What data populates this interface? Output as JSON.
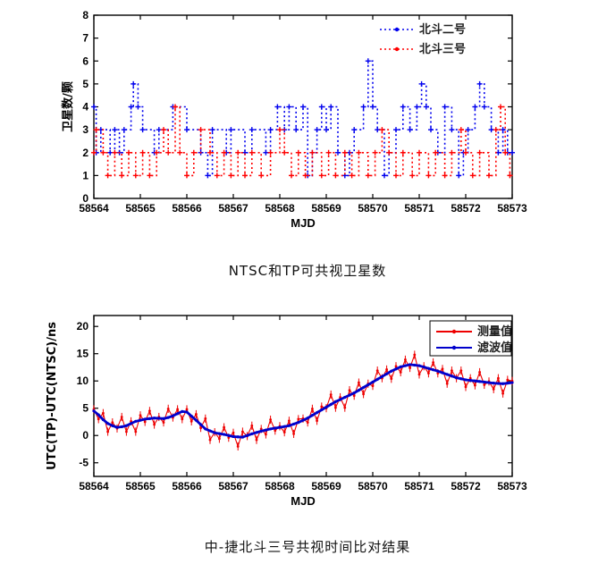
{
  "captions": {
    "chart1": "NTSC和TP可共视卫星数",
    "chart2": "中-捷北斗三号共视时间比对结果"
  },
  "colors": {
    "beidou2": "#0000ee",
    "beidou3": "#ff0000",
    "measured": "#ee0000",
    "filtered": "#0000cc",
    "axis": "#000000"
  },
  "chart_data": [
    {
      "type": "step",
      "title": "",
      "xlabel": "MJD",
      "ylabel": "卫星数/颗",
      "xlim": [
        58564,
        58573
      ],
      "ylim": [
        0,
        8
      ],
      "xticks": [
        58564,
        58565,
        58566,
        58567,
        58568,
        58569,
        58570,
        58571,
        58572,
        58573
      ],
      "yticks": [
        0,
        1,
        2,
        3,
        4,
        5,
        6,
        7,
        8
      ],
      "grid": false,
      "legend": {
        "position": "top-right-inside",
        "box": false
      },
      "series": [
        {
          "name": "北斗二号",
          "color": "#0000ee",
          "line_style": "dashed",
          "points": [
            [
              58564.0,
              4
            ],
            [
              58564.05,
              2
            ],
            [
              58564.15,
              3
            ],
            [
              58564.35,
              2
            ],
            [
              58564.45,
              3
            ],
            [
              58564.55,
              2
            ],
            [
              58564.65,
              3
            ],
            [
              58564.8,
              4
            ],
            [
              58564.85,
              5
            ],
            [
              58564.95,
              4
            ],
            [
              58565.05,
              3
            ],
            [
              58565.3,
              2
            ],
            [
              58565.4,
              3
            ],
            [
              58565.7,
              4
            ],
            [
              58566.0,
              3
            ],
            [
              58566.3,
              2
            ],
            [
              58566.45,
              1
            ],
            [
              58566.55,
              3
            ],
            [
              58566.85,
              2
            ],
            [
              58566.95,
              3
            ],
            [
              58567.25,
              2
            ],
            [
              58567.4,
              3
            ],
            [
              58567.7,
              2
            ],
            [
              58567.8,
              3
            ],
            [
              58567.95,
              4
            ],
            [
              58568.1,
              3
            ],
            [
              58568.2,
              4
            ],
            [
              58568.35,
              3
            ],
            [
              58568.5,
              4
            ],
            [
              58568.6,
              1
            ],
            [
              58568.7,
              2
            ],
            [
              58568.8,
              3
            ],
            [
              58568.9,
              4
            ],
            [
              58569.0,
              3
            ],
            [
              58569.1,
              4
            ],
            [
              58569.25,
              2
            ],
            [
              58569.4,
              1
            ],
            [
              58569.5,
              2
            ],
            [
              58569.6,
              3
            ],
            [
              58569.8,
              4
            ],
            [
              58569.9,
              6
            ],
            [
              58570.0,
              4
            ],
            [
              58570.1,
              3
            ],
            [
              58570.25,
              1
            ],
            [
              58570.35,
              2
            ],
            [
              58570.5,
              3
            ],
            [
              58570.65,
              4
            ],
            [
              58570.8,
              3
            ],
            [
              58570.95,
              4
            ],
            [
              58571.05,
              5
            ],
            [
              58571.15,
              4
            ],
            [
              58571.25,
              3
            ],
            [
              58571.4,
              2
            ],
            [
              58571.55,
              4
            ],
            [
              58571.7,
              3
            ],
            [
              58571.85,
              1
            ],
            [
              58571.95,
              2
            ],
            [
              58572.05,
              3
            ],
            [
              58572.2,
              4
            ],
            [
              58572.3,
              5
            ],
            [
              58572.4,
              4
            ],
            [
              58572.55,
              3
            ],
            [
              58572.7,
              2
            ],
            [
              58572.8,
              3
            ],
            [
              58572.9,
              2
            ],
            [
              58573.0,
              2
            ]
          ]
        },
        {
          "name": "北斗三号",
          "color": "#ff0000",
          "line_style": "dashed",
          "points": [
            [
              58564.0,
              2
            ],
            [
              58564.05,
              3
            ],
            [
              58564.2,
              2
            ],
            [
              58564.3,
              1
            ],
            [
              58564.45,
              2
            ],
            [
              58564.6,
              1
            ],
            [
              58564.75,
              2
            ],
            [
              58564.9,
              1
            ],
            [
              58565.05,
              2
            ],
            [
              58565.2,
              1
            ],
            [
              58565.35,
              2
            ],
            [
              58565.5,
              3
            ],
            [
              58565.6,
              2
            ],
            [
              58565.75,
              4
            ],
            [
              58565.85,
              2
            ],
            [
              58566.0,
              1
            ],
            [
              58566.15,
              2
            ],
            [
              58566.3,
              3
            ],
            [
              58566.5,
              2
            ],
            [
              58566.65,
              1
            ],
            [
              58566.8,
              2
            ],
            [
              58566.95,
              1
            ],
            [
              58567.1,
              2
            ],
            [
              58567.25,
              1
            ],
            [
              58567.4,
              2
            ],
            [
              58567.6,
              1
            ],
            [
              58567.8,
              2
            ],
            [
              58568.0,
              3
            ],
            [
              58568.1,
              2
            ],
            [
              58568.25,
              1
            ],
            [
              58568.4,
              2
            ],
            [
              58568.55,
              1
            ],
            [
              58568.7,
              2
            ],
            [
              58568.9,
              1
            ],
            [
              58569.05,
              2
            ],
            [
              58569.2,
              1
            ],
            [
              58569.4,
              2
            ],
            [
              58569.55,
              1
            ],
            [
              58569.7,
              2
            ],
            [
              58569.9,
              1
            ],
            [
              58570.05,
              2
            ],
            [
              58570.2,
              3
            ],
            [
              58570.35,
              2
            ],
            [
              58570.5,
              1
            ],
            [
              58570.65,
              2
            ],
            [
              58570.85,
              1
            ],
            [
              58571.0,
              2
            ],
            [
              58571.2,
              1
            ],
            [
              58571.35,
              2
            ],
            [
              58571.55,
              1
            ],
            [
              58571.7,
              2
            ],
            [
              58571.9,
              3
            ],
            [
              58572.0,
              2
            ],
            [
              58572.15,
              1
            ],
            [
              58572.3,
              2
            ],
            [
              58572.5,
              1
            ],
            [
              58572.65,
              3
            ],
            [
              58572.75,
              4
            ],
            [
              58572.85,
              2
            ],
            [
              58572.95,
              1
            ]
          ]
        }
      ]
    },
    {
      "type": "line",
      "title": "",
      "xlabel": "MJD",
      "ylabel": "UTC(TP)-UTC(NTSC)/ns",
      "xlim": [
        58564,
        58573
      ],
      "ylim": [
        -7.5,
        22
      ],
      "xticks": [
        58564,
        58565,
        58566,
        58567,
        58568,
        58569,
        58570,
        58571,
        58572,
        58573
      ],
      "yticks": [
        -5,
        0,
        5,
        10,
        15,
        20
      ],
      "grid": false,
      "legend": {
        "position": "top-right-inside",
        "box": true
      },
      "series": [
        {
          "name": "测量值",
          "color": "#ee0000",
          "line_style": "noisy-markers",
          "error_bar": 0.75,
          "x_start": 58564,
          "x_step": 0.1,
          "values": [
            4.8,
            3.0,
            4.1,
            0.7,
            2.4,
            1.3,
            3.4,
            0.7,
            2.6,
            0.7,
            3.7,
            2.5,
            4.5,
            2.0,
            3.4,
            2.4,
            4.9,
            3.3,
            4.8,
            3.0,
            4.8,
            2.6,
            3.9,
            1.4,
            3.1,
            -0.8,
            0.6,
            -0.6,
            1.5,
            -0.4,
            0.5,
            -2.0,
            0.7,
            -0.1,
            1.8,
            -0.8,
            1.2,
            0.2,
            2.9,
            0.9,
            1.7,
            0.6,
            2.7,
            0.3,
            3.0,
            3.1,
            2.4,
            4.9,
            2.7,
            5.3,
            5.0,
            7.5,
            5.1,
            7.0,
            5.1,
            8.3,
            7.3,
            9.7,
            7.6,
            9.5,
            9.1,
            11.9,
            10.5,
            12.1,
            10.4,
            12.7,
            11.6,
            13.9,
            12.4,
            14.8,
            11.2,
            12.7,
            11.4,
            13.4,
            11.4,
            12.2,
            9.5,
            11.9,
            10.5,
            11.9,
            8.9,
            10.5,
            9.2,
            11.6,
            9.3,
            9.9,
            8.5,
            10.5,
            7.7,
            10.2,
            10.0
          ]
        },
        {
          "name": "滤波值",
          "color": "#0000cc",
          "line_style": "thick",
          "x_start": 58564,
          "x_step": 0.1,
          "values": [
            4.5,
            3.8,
            2.9,
            2.2,
            1.8,
            1.5,
            1.6,
            1.8,
            2.2,
            2.6,
            2.8,
            3.0,
            3.1,
            3.2,
            3.15,
            3.1,
            3.3,
            3.6,
            4.0,
            4.4,
            4.3,
            3.55,
            2.8,
            2.0,
            1.2,
            0.85,
            0.5,
            0.35,
            0.2,
            0.0,
            -0.2,
            -0.25,
            -0.3,
            0.0,
            0.3,
            0.55,
            0.8,
            1.0,
            1.2,
            1.35,
            1.5,
            1.65,
            1.8,
            2.1,
            2.4,
            2.8,
            3.2,
            3.7,
            4.2,
            4.7,
            5.2,
            5.7,
            6.2,
            6.6,
            7.0,
            7.4,
            7.8,
            8.3,
            8.8,
            9.3,
            9.8,
            10.3,
            10.8,
            11.3,
            11.8,
            12.2,
            12.6,
            12.8,
            13.0,
            12.9,
            12.8,
            12.55,
            12.3,
            12.05,
            11.8,
            11.5,
            11.2,
            10.9,
            10.6,
            10.4,
            10.2,
            10.1,
            10.0,
            9.9,
            9.8,
            9.7,
            9.6,
            9.55,
            9.5,
            9.6,
            9.7
          ]
        }
      ]
    }
  ]
}
